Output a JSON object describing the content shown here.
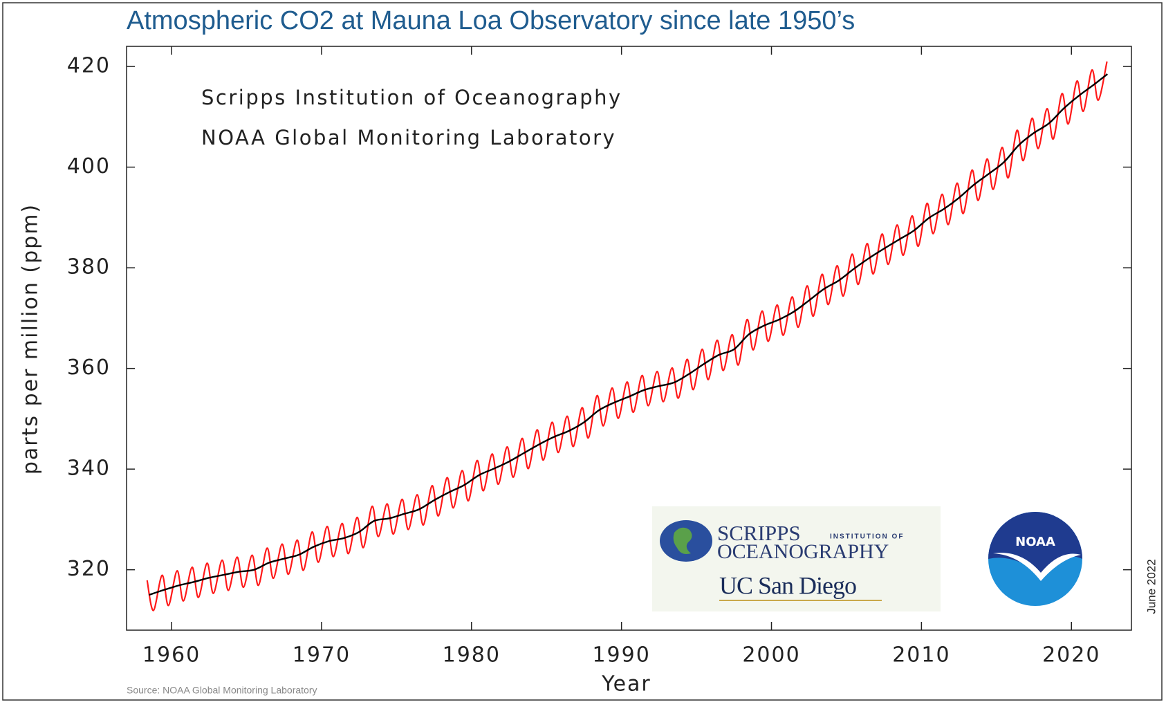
{
  "chart_data": {
    "type": "line",
    "title": "Atmospheric CO2 at Mauna Loa Observatory since late 1950’s",
    "annotations": [
      "Scripps Institution of Oceanography",
      "NOAA Global Monitoring Laboratory"
    ],
    "xlabel": "Year",
    "ylabel": "parts per million (ppm)",
    "date_note": "June 2022",
    "source": "Source:  NOAA Global Monitoring Laboratory",
    "xlim": [
      1957,
      2024
    ],
    "ylim": [
      308,
      424
    ],
    "xticks": [
      1960,
      1970,
      1980,
      1990,
      2000,
      2010,
      2020
    ],
    "yticks": [
      320,
      340,
      360,
      380,
      400,
      420
    ],
    "grid": false,
    "series": [
      {
        "color": "#ff1a1a",
        "x": [
          1958.37,
          1958.79,
          1959.37,
          1959.79,
          1960.37,
          1960.79,
          1961.37,
          1961.79,
          1962.37,
          1962.79,
          1963.37,
          1963.79,
          1964.37,
          1964.79,
          1965.37,
          1965.79,
          1966.37,
          1966.79,
          1967.37,
          1967.79,
          1968.37,
          1968.79,
          1969.37,
          1969.79,
          1970.37,
          1970.79,
          1971.37,
          1971.79,
          1972.37,
          1972.79,
          1973.37,
          1973.79,
          1974.37,
          1974.79,
          1975.37,
          1975.79,
          1976.37,
          1976.79,
          1977.37,
          1977.79,
          1978.37,
          1978.79,
          1979.37,
          1979.79,
          1980.37,
          1980.79,
          1981.37,
          1981.79,
          1982.37,
          1982.79,
          1983.37,
          1983.79,
          1984.37,
          1984.79,
          1985.37,
          1985.79,
          1986.37,
          1986.79,
          1987.37,
          1987.79,
          1988.37,
          1988.79,
          1989.37,
          1989.79,
          1990.37,
          1990.79,
          1991.37,
          1991.79,
          1992.37,
          1992.79,
          1993.37,
          1993.79,
          1994.37,
          1994.79,
          1995.37,
          1995.79,
          1996.37,
          1996.79,
          1997.37,
          1997.79,
          1998.37,
          1998.79,
          1999.37,
          1999.79,
          2000.37,
          2000.79,
          2001.37,
          2001.79,
          2002.37,
          2002.79,
          2003.37,
          2003.79,
          2004.37,
          2004.79,
          2005.37,
          2005.79,
          2006.37,
          2006.79,
          2007.37,
          2007.79,
          2008.37,
          2008.79,
          2009.37,
          2009.79,
          2010.37,
          2010.79,
          2011.37,
          2011.79,
          2012.37,
          2012.79,
          2013.37,
          2013.79,
          2014.37,
          2014.79,
          2015.37,
          2015.79,
          2016.37,
          2016.79,
          2017.37,
          2017.79,
          2018.37,
          2018.79,
          2019.37,
          2019.79,
          2020.37,
          2020.79,
          2021.37,
          2021.79,
          2022.37
        ],
        "values": [
          317.9,
          311.9,
          318.9,
          312.9,
          319.8,
          313.8,
          320.5,
          314.5,
          321.3,
          315.3,
          321.9,
          315.9,
          322.5,
          316.5,
          322.9,
          316.9,
          324.3,
          318.3,
          325.1,
          319.1,
          325.9,
          319.9,
          327.5,
          321.5,
          328.6,
          322.6,
          329.2,
          323.2,
          330.4,
          324.4,
          332.6,
          326.6,
          333.1,
          327.1,
          334.0,
          328.0,
          334.9,
          328.9,
          336.7,
          330.7,
          338.3,
          332.3,
          339.7,
          333.7,
          341.7,
          335.7,
          343.0,
          337.0,
          344.4,
          338.4,
          346.1,
          340.1,
          347.8,
          341.8,
          349.3,
          343.3,
          350.5,
          344.5,
          352.2,
          346.2,
          354.6,
          348.6,
          356.1,
          350.1,
          357.3,
          351.3,
          358.6,
          352.6,
          359.4,
          353.4,
          360.1,
          354.1,
          361.8,
          355.8,
          363.8,
          357.8,
          365.6,
          359.6,
          366.7,
          360.7,
          369.7,
          363.7,
          371.4,
          365.4,
          372.6,
          366.6,
          374.2,
          368.2,
          376.4,
          370.4,
          378.7,
          372.7,
          380.4,
          374.4,
          382.7,
          376.7,
          384.8,
          378.8,
          386.7,
          380.7,
          388.5,
          382.5,
          390.3,
          384.3,
          392.8,
          386.8,
          394.6,
          388.6,
          396.8,
          390.8,
          399.4,
          393.4,
          401.6,
          395.6,
          403.9,
          397.9,
          407.3,
          401.3,
          409.7,
          403.7,
          411.6,
          405.6,
          414.6,
          408.6,
          417.1,
          411.1,
          419.3,
          413.3,
          421.0
        ]
      },
      {
        "color": "#000000",
        "x": [
          1958.5,
          1959.5,
          1960.5,
          1961.5,
          1962.5,
          1963.5,
          1964.5,
          1965.5,
          1966.5,
          1967.5,
          1968.5,
          1969.5,
          1970.5,
          1971.5,
          1972.5,
          1973.5,
          1974.5,
          1975.5,
          1976.5,
          1977.5,
          1978.5,
          1979.5,
          1980.5,
          1981.5,
          1982.5,
          1983.5,
          1984.5,
          1985.5,
          1986.5,
          1987.5,
          1988.5,
          1989.5,
          1990.5,
          1991.5,
          1992.5,
          1993.5,
          1994.5,
          1995.5,
          1996.5,
          1997.5,
          1998.5,
          1999.5,
          2000.5,
          2001.5,
          2002.5,
          2003.5,
          2004.5,
          2005.5,
          2006.5,
          2007.5,
          2008.5,
          2009.5,
          2010.5,
          2011.5,
          2012.5,
          2013.5,
          2014.5,
          2015.5,
          2016.5,
          2017.5,
          2018.5,
          2019.5,
          2020.5,
          2021.5,
          2022.4
        ],
        "values": [
          315.0,
          316.0,
          316.9,
          317.6,
          318.4,
          319.0,
          319.6,
          320.0,
          321.4,
          322.2,
          323.0,
          324.6,
          325.7,
          326.3,
          327.5,
          329.7,
          330.2,
          331.1,
          332.0,
          333.8,
          335.4,
          336.8,
          338.8,
          340.1,
          341.5,
          343.2,
          344.9,
          346.4,
          347.6,
          349.3,
          351.7,
          353.2,
          354.4,
          355.7,
          356.5,
          357.2,
          358.9,
          360.9,
          362.7,
          363.8,
          366.8,
          368.5,
          369.7,
          371.3,
          373.5,
          375.8,
          377.5,
          379.8,
          381.9,
          383.8,
          385.6,
          387.4,
          389.9,
          391.7,
          393.9,
          396.5,
          398.7,
          401.0,
          404.4,
          406.8,
          408.7,
          411.7,
          414.2,
          416.4,
          418.5
        ]
      }
    ]
  },
  "logos": {
    "scripps": "SCRIPPS",
    "institution": "INSTITUTION OF",
    "oceanography": "OCEANOGRAPHY",
    "ucsd": "UC San Diego",
    "noaa": "NOAA"
  }
}
